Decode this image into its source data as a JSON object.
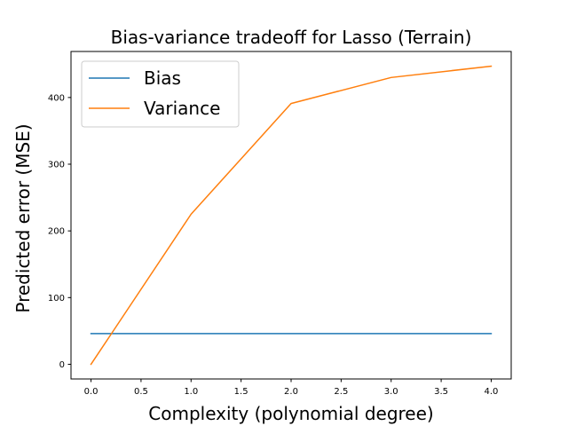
{
  "chart_data": {
    "type": "line",
    "title": "Bias-variance tradeoff for Lasso (Terrain)",
    "xlabel": "Complexity (polynomial degree)",
    "ylabel": "Predicted error (MSE)",
    "xlim": [
      -0.2,
      4.2
    ],
    "ylim": [
      -22,
      469
    ],
    "xticks": [
      0.0,
      0.5,
      1.0,
      1.5,
      2.0,
      2.5,
      3.0,
      3.5,
      4.0
    ],
    "xtick_labels": [
      "0.0",
      "0.5",
      "1.0",
      "1.5",
      "2.0",
      "2.5",
      "3.0",
      "3.5",
      "4.0"
    ],
    "yticks": [
      0,
      100,
      200,
      300,
      400
    ],
    "ytick_labels": [
      "0",
      "100",
      "200",
      "300",
      "400"
    ],
    "x": [
      0,
      1,
      2,
      3,
      4
    ],
    "series": [
      {
        "name": "Bias",
        "color": "#1f77b4",
        "values": [
          46,
          46,
          46,
          46,
          46
        ]
      },
      {
        "name": "Variance",
        "color": "#ff7f0e",
        "values": [
          0,
          225,
          391,
          430,
          447
        ]
      }
    ],
    "legend_position": "top-left",
    "grid": false
  }
}
